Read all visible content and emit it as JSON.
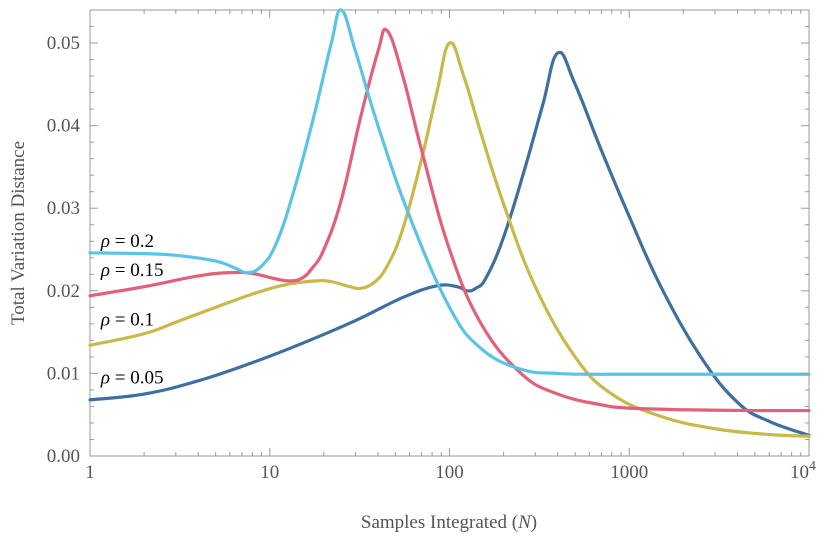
{
  "chart_data": {
    "type": "line",
    "title": "",
    "xlabel": "Samples Integrated",
    "xlabel_var": "N",
    "ylabel": "Total Variation Distance",
    "xscale": "log",
    "xlim": [
      1,
      10000
    ],
    "ylim": [
      0,
      0.054
    ],
    "grid": false,
    "x_ticks": [
      {
        "value": 1,
        "label": "1"
      },
      {
        "value": 10,
        "label": "10"
      },
      {
        "value": 100,
        "label": "100"
      },
      {
        "value": 1000,
        "label": "1000"
      },
      {
        "value": 10000,
        "label": "10",
        "sup": "4"
      }
    ],
    "y_ticks": [
      {
        "value": 0,
        "label": "0.00"
      },
      {
        "value": 0.01,
        "label": "0.01"
      },
      {
        "value": 0.02,
        "label": "0.02"
      },
      {
        "value": 0.03,
        "label": "0.03"
      },
      {
        "value": 0.04,
        "label": "0.04"
      },
      {
        "value": 0.05,
        "label": "0.05"
      }
    ],
    "series": [
      {
        "name": "rho-0.05",
        "label_symbol": "ρ",
        "label_text": " = 0.05",
        "color": "#3f6fa0",
        "label_at": [
          1.15,
          0.0088
        ],
        "x": [
          1,
          2,
          4,
          8,
          15,
          30,
          55,
          85,
          110,
          125,
          140,
          160,
          200,
          260,
          330,
          400,
          500,
          700,
          1000,
          1500,
          2500,
          4000,
          6000,
          10000
        ],
        "y": [
          0.0068,
          0.0075,
          0.0091,
          0.0113,
          0.0136,
          0.0164,
          0.0192,
          0.0206,
          0.0205,
          0.02,
          0.0203,
          0.0216,
          0.0265,
          0.0345,
          0.0425,
          0.0488,
          0.045,
          0.037,
          0.029,
          0.0205,
          0.012,
          0.0065,
          0.0042,
          0.0025
        ]
      },
      {
        "name": "rho-0.1",
        "label_symbol": "ρ",
        "label_text": " = 0.1",
        "color": "#c9b84a",
        "label_at": [
          1.15,
          0.0158
        ],
        "x": [
          1,
          2,
          3,
          5,
          8,
          12,
          18,
          22,
          28,
          32,
          38,
          45,
          55,
          70,
          85,
          100,
          120,
          150,
          200,
          300,
          500,
          800,
          1500,
          3000,
          6000,
          10000
        ],
        "y": [
          0.0134,
          0.0148,
          0.0162,
          0.018,
          0.0196,
          0.0207,
          0.0212,
          0.0211,
          0.0205,
          0.0203,
          0.021,
          0.023,
          0.0275,
          0.036,
          0.044,
          0.05,
          0.046,
          0.039,
          0.0305,
          0.0205,
          0.012,
          0.0075,
          0.0048,
          0.0033,
          0.0026,
          0.0024
        ]
      },
      {
        "name": "rho-0.15",
        "label_symbol": "ρ",
        "label_text": " = 0.15",
        "color": "#e2607a",
        "label_at": [
          1.15,
          0.0218
        ],
        "x": [
          1,
          2,
          4,
          6,
          8,
          11,
          13,
          15,
          17,
          20,
          25,
          32,
          40,
          45,
          55,
          70,
          100,
          150,
          250,
          400,
          700,
          1000,
          2000,
          5000,
          10000
        ],
        "y": [
          0.0194,
          0.0205,
          0.0218,
          0.0222,
          0.0221,
          0.0214,
          0.0212,
          0.0215,
          0.0226,
          0.025,
          0.031,
          0.041,
          0.049,
          0.0515,
          0.046,
          0.037,
          0.025,
          0.016,
          0.01,
          0.0075,
          0.0062,
          0.0058,
          0.0056,
          0.0055,
          0.0055
        ]
      },
      {
        "name": "rho-0.2",
        "label_symbol": "ρ",
        "label_text": " = 0.2",
        "color": "#5bc4e6",
        "label_at": [
          1.15,
          0.0253
        ],
        "x": [
          1,
          2,
          3,
          5,
          6.5,
          7.5,
          9,
          11,
          14,
          18,
          22,
          25,
          30,
          40,
          60,
          100,
          150,
          250,
          400,
          600,
          1000,
          3000,
          10000
        ],
        "y": [
          0.0246,
          0.0245,
          0.0243,
          0.0236,
          0.0227,
          0.0222,
          0.023,
          0.026,
          0.033,
          0.042,
          0.05,
          0.054,
          0.049,
          0.04,
          0.029,
          0.018,
          0.013,
          0.0105,
          0.01,
          0.0099,
          0.0099,
          0.0099,
          0.0099
        ]
      }
    ]
  }
}
